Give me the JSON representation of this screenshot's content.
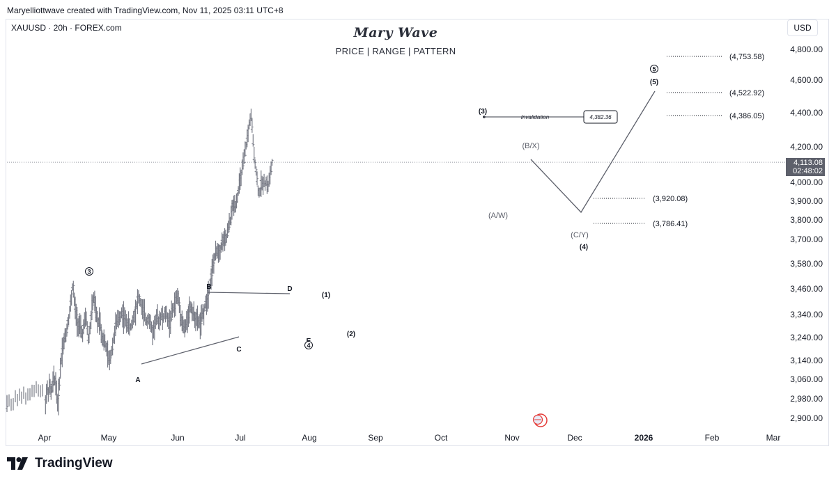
{
  "header": {
    "attribution": "Maryelliottwave created with TradingView.com, Nov 11, 2025 03:11 UTC+8",
    "symbol": "XAUUSD · 20h · FOREX.com",
    "brand_title": "Mary Wave",
    "brand_subtitle": "PRICE  |  RANGE  |  PATTERN",
    "currency": "USD"
  },
  "current_price": {
    "price": "4,113.08",
    "countdown": "02:48:02"
  },
  "footer": {
    "logo_text": "TradingView"
  },
  "colors": {
    "bars": "#787b86",
    "lines": "#5d606b",
    "label_bg": "#5d606b",
    "text": "#131722"
  },
  "chart_data": {
    "type": "ohlc",
    "instrument": "XAUUSD",
    "timeframe": "20h",
    "y_ticks": [
      4800,
      4600,
      4400,
      4200,
      4000,
      3900,
      3800,
      3700,
      3580,
      3460,
      3340,
      3240,
      3140,
      3060,
      2980,
      2900
    ],
    "y_tick_labels": [
      "4,800.00",
      "4,600.00",
      "4,400.00",
      "4,200.00",
      "4,000.00",
      "3,900.00",
      "3,800.00",
      "3,700.00",
      "3,580.00",
      "3,460.00",
      "3,340.00",
      "3,240.00",
      "3,140.00",
      "3,060.00",
      "2,980.00",
      "2,900.00"
    ],
    "x_ticks": [
      "Apr",
      "May",
      "Jun",
      "Jul",
      "Aug",
      "Sep",
      "Oct",
      "Nov",
      "Dec",
      "2026",
      "Feb",
      "Mar"
    ],
    "price_path": [
      [
        0,
        2950
      ],
      [
        0.02,
        2980
      ],
      [
        0.04,
        3020
      ],
      [
        0.06,
        3010
      ],
      [
        0.08,
        3040
      ],
      [
        0.1,
        3000
      ],
      [
        0.12,
        3030
      ],
      [
        0.15,
        3070
      ],
      [
        0.18,
        3040
      ],
      [
        0.2,
        2960
      ],
      [
        0.22,
        2990
      ],
      [
        0.24,
        3090
      ],
      [
        0.27,
        3180
      ],
      [
        0.3,
        3220
      ],
      [
        0.33,
        3250
      ],
      [
        0.36,
        3300
      ],
      [
        0.39,
        3350
      ],
      [
        0.42,
        3420
      ],
      [
        0.44,
        3490
      ],
      [
        0.47,
        3380
      ],
      [
        0.5,
        3330
      ],
      [
        0.53,
        3290
      ],
      [
        0.56,
        3280
      ],
      [
        0.59,
        3250
      ],
      [
        0.62,
        3300
      ],
      [
        0.65,
        3330
      ],
      [
        0.68,
        3230
      ],
      [
        0.71,
        3280
      ],
      [
        0.74,
        3370
      ],
      [
        0.77,
        3420
      ],
      [
        0.8,
        3350
      ],
      [
        0.83,
        3300
      ],
      [
        0.86,
        3330
      ],
      [
        0.89,
        3250
      ],
      [
        0.92,
        3230
      ],
      [
        0.95,
        3210
      ],
      [
        0.98,
        3170
      ],
      [
        1.01,
        3130
      ],
      [
        1.04,
        3180
      ],
      [
        1.07,
        3230
      ],
      [
        1.1,
        3290
      ],
      [
        1.13,
        3310
      ],
      [
        1.16,
        3330
      ],
      [
        1.19,
        3350
      ],
      [
        1.22,
        3330
      ],
      [
        1.25,
        3310
      ],
      [
        1.28,
        3300
      ],
      [
        1.31,
        3280
      ],
      [
        1.34,
        3300
      ],
      [
        1.37,
        3340
      ],
      [
        1.4,
        3380
      ],
      [
        1.43,
        3420
      ],
      [
        1.46,
        3400
      ],
      [
        1.49,
        3360
      ],
      [
        1.52,
        3340
      ],
      [
        1.55,
        3310
      ],
      [
        1.58,
        3330
      ],
      [
        1.61,
        3290
      ],
      [
        1.64,
        3260
      ],
      [
        1.67,
        3300
      ],
      [
        1.7,
        3330
      ],
      [
        1.73,
        3310
      ],
      [
        1.76,
        3340
      ],
      [
        1.79,
        3320
      ],
      [
        1.82,
        3350
      ],
      [
        1.85,
        3330
      ],
      [
        1.88,
        3300
      ],
      [
        1.91,
        3340
      ],
      [
        1.94,
        3370
      ],
      [
        1.97,
        3400
      ],
      [
        2.0,
        3430
      ],
      [
        2.03,
        3380
      ],
      [
        2.06,
        3320
      ],
      [
        2.09,
        3290
      ],
      [
        2.12,
        3270
      ],
      [
        2.15,
        3320
      ],
      [
        2.18,
        3360
      ],
      [
        2.21,
        3380
      ],
      [
        2.24,
        3350
      ],
      [
        2.27,
        3330
      ],
      [
        2.3,
        3320
      ],
      [
        2.33,
        3310
      ],
      [
        2.36,
        3300
      ],
      [
        2.39,
        3330
      ],
      [
        2.42,
        3360
      ],
      [
        2.45,
        3390
      ],
      [
        2.48,
        3430
      ],
      [
        2.51,
        3480
      ],
      [
        2.54,
        3530
      ],
      [
        2.57,
        3580
      ],
      [
        2.6,
        3620
      ],
      [
        2.63,
        3650
      ],
      [
        2.66,
        3640
      ],
      [
        2.69,
        3660
      ],
      [
        2.72,
        3700
      ],
      [
        2.75,
        3690
      ],
      [
        2.78,
        3710
      ],
      [
        2.81,
        3760
      ],
      [
        2.84,
        3800
      ],
      [
        2.87,
        3860
      ],
      [
        2.9,
        3890
      ],
      [
        2.93,
        3880
      ],
      [
        2.96,
        3940
      ],
      [
        2.99,
        4000
      ],
      [
        3.02,
        4060
      ],
      [
        3.05,
        4120
      ],
      [
        3.08,
        4200
      ],
      [
        3.11,
        4280
      ],
      [
        3.14,
        4360
      ],
      [
        3.16,
        4382
      ],
      [
        3.18,
        4250
      ],
      [
        3.2,
        4150
      ],
      [
        3.22,
        4100
      ],
      [
        3.24,
        4020
      ],
      [
        3.26,
        3960
      ],
      [
        3.28,
        3930
      ],
      [
        3.3,
        4000
      ],
      [
        3.32,
        3980
      ],
      [
        3.34,
        4020
      ],
      [
        3.36,
        3990
      ],
      [
        3.38,
        4010
      ],
      [
        3.4,
        3970
      ],
      [
        3.42,
        4020
      ],
      [
        3.44,
        4060
      ],
      [
        3.46,
        4113
      ]
    ],
    "projection": [
      {
        "label": "(B/X)",
        "price": 4150
      },
      {
        "label": "(C/Y) (4)",
        "price": 3850
      },
      {
        "label": "(5)",
        "price": 4530
      }
    ],
    "wave_labels": [
      "3",
      "A",
      "B",
      "C",
      "D",
      "E",
      "4",
      "(1)",
      "(2)",
      "(3)",
      "(A/W)",
      "(B/X)",
      "(C/Y)",
      "(4)",
      "5",
      "(5)"
    ],
    "levels": [
      {
        "label": "(4,753.58)",
        "price": 4753.58
      },
      {
        "label": "(4,522.92)",
        "price": 4522.92
      },
      {
        "label": "(4,386.05)",
        "price": 4386.05
      },
      {
        "label": "(3,920.08)",
        "price": 3920.08
      },
      {
        "label": "(3,786.41)",
        "price": 3786.41
      }
    ],
    "invalidation": {
      "label": "Invalidation",
      "value": "4,382.36",
      "price": 4382.36
    },
    "last_price": 4113.08
  }
}
